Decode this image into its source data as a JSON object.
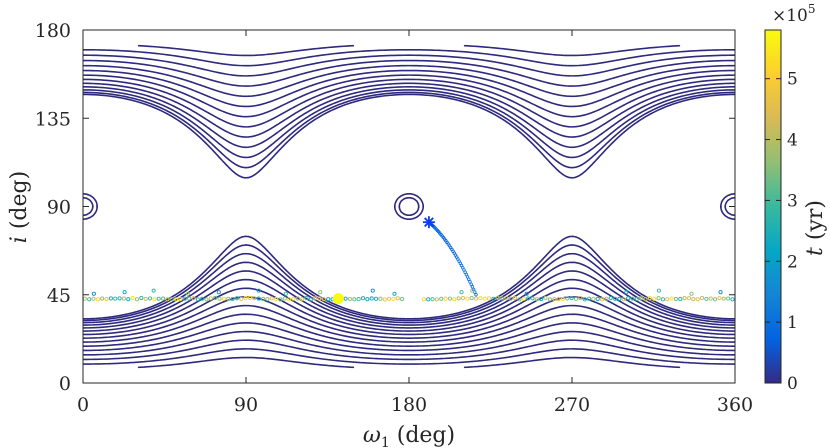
{
  "chart_data": {
    "type": "contour",
    "xlabel": "ω₁ (deg)",
    "ylabel": "i (deg)",
    "xlim": [
      0,
      360
    ],
    "ylim": [
      0,
      180
    ],
    "xticks": [
      "0",
      "90",
      "180",
      "270",
      "360"
    ],
    "yticks": [
      "0",
      "45",
      "90",
      "135",
      "180"
    ],
    "grid": false,
    "contour_color": "#2e2a7e",
    "colorbar": {
      "label": "t (yr)",
      "range": [
        0,
        580000
      ],
      "ticks": [
        "0",
        "1",
        "2",
        "3",
        "4",
        "5"
      ],
      "exponent_label": "×10",
      "exponent_power": "5",
      "colormap": [
        "#352a87",
        "#0363e1",
        "#1485d4",
        "#06a7c6",
        "#38b99e",
        "#92bf73",
        "#d9ba56",
        "#fcce2e",
        "#f9fb0e"
      ]
    },
    "contour_lines": {
      "upper_lobe_centers": [
        [
          90,
          103
        ],
        [
          270,
          103
        ]
      ],
      "lower_lobe_centers": [
        [
          90,
          77
        ],
        [
          270,
          77
        ]
      ],
      "upper_band": [
        93.5,
        167
      ],
      "lower_band": [
        13,
        86.5
      ]
    },
    "trajectory": {
      "start_marker": {
        "omega": 191,
        "inc": 82
      },
      "band_inclination": 43,
      "end_marker": {
        "omega": 141,
        "inc": 43
      }
    }
  }
}
